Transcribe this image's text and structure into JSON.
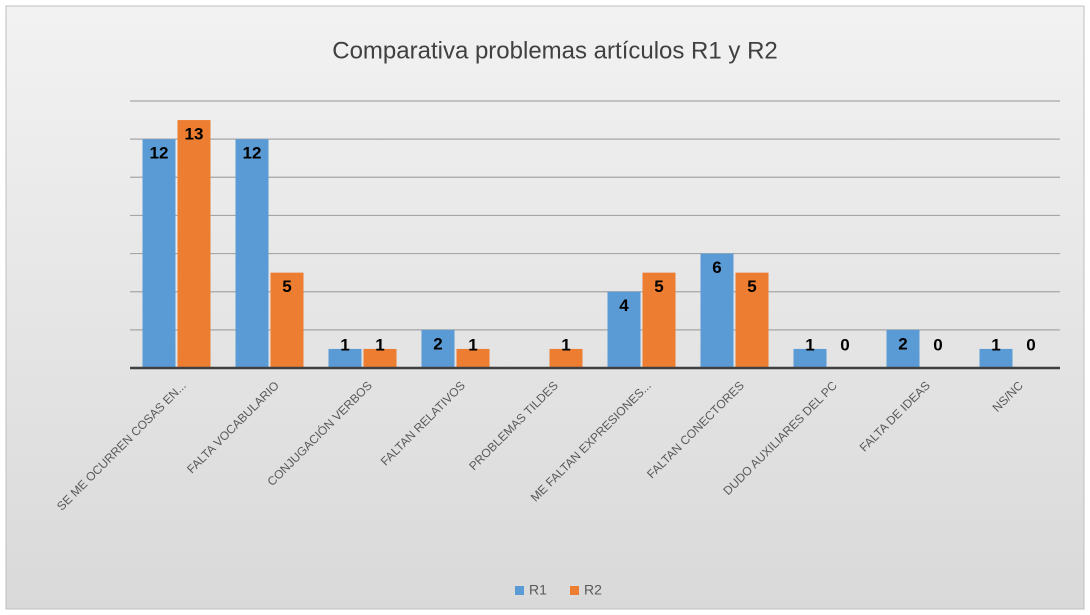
{
  "chart_data": {
    "type": "bar",
    "title": "Comparativa problemas artículos R1 y R2",
    "categories": [
      "SE ME OCURREN COSAS EN...",
      "FALTA VOCABULARIO",
      "CONJUGACIÓN  VERBOS",
      "FALTAN RELATIVOS",
      "PROBLEMAS  TILDES",
      "ME FALTAN EXPRESIONES...",
      "FALTAN CONECTORES",
      "DUDO AUXILIARES DEL PC",
      "FALTA DE IDEAS",
      "NS/NC"
    ],
    "series": [
      {
        "name": "R1",
        "color": "#5b9bd5",
        "values": [
          12,
          12,
          1,
          2,
          null,
          4,
          6,
          1,
          2,
          1
        ]
      },
      {
        "name": "R2",
        "color": "#ed7d31",
        "values": [
          13,
          5,
          1,
          1,
          1,
          5,
          5,
          0,
          0,
          0
        ]
      }
    ],
    "ylim": [
      0,
      14
    ],
    "yticks": [
      0,
      2,
      4,
      6,
      8,
      10,
      12,
      14
    ],
    "grid": true,
    "legend": "bottom"
  }
}
